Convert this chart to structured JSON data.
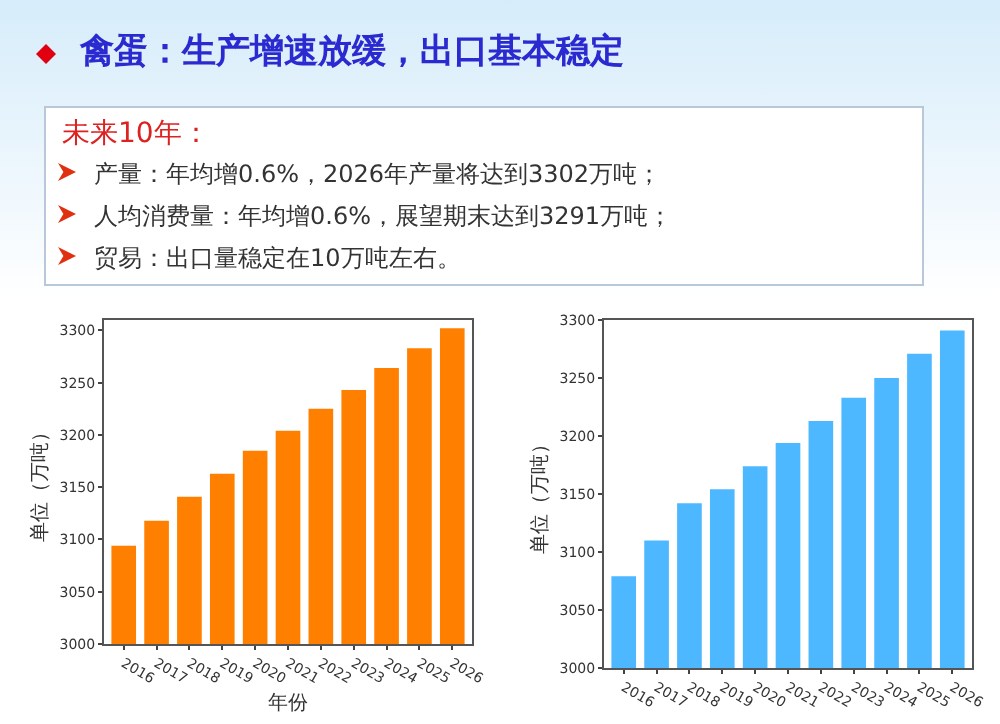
{
  "chart_data": [
    {
      "type": "other",
      "title": "禽蛋：生产增速放缓，出口基本稳定",
      "annotations": [
        "未来10年：",
        "产量：年均增0.6%，2026年产量将达到3302万吨；",
        "人均消费量：年均增0.6%，展望期末达到3291万吨；",
        "贸易：出口量稳定在10万吨左右。"
      ]
    },
    {
      "type": "bar",
      "xlabel": "年份",
      "ylabel": "单位（万吨）",
      "categories": [
        "2016",
        "2017",
        "2018",
        "2019",
        "2020",
        "2021",
        "2022",
        "2023",
        "2024",
        "2025",
        "2026"
      ],
      "values": [
        3094,
        3118,
        3141,
        3163,
        3185,
        3204,
        3225,
        3243,
        3264,
        3283,
        3302
      ],
      "color": "#ff8000",
      "ylim": [
        3000,
        3310
      ],
      "yticks": [
        3000,
        3050,
        3100,
        3150,
        3200,
        3250,
        3300
      ],
      "grid": false
    },
    {
      "type": "bar",
      "ylabel": "单位（万吨）",
      "categories": [
        "2016",
        "2017",
        "2018",
        "2019",
        "2020",
        "2021",
        "2022",
        "2023",
        "2024",
        "2025",
        "2026"
      ],
      "values": [
        3079,
        3110,
        3142,
        3154,
        3174,
        3194,
        3213,
        3233,
        3250,
        3271,
        3291
      ],
      "color": "#4db8ff",
      "ylim": [
        3000,
        3300
      ],
      "yticks": [
        3000,
        3050,
        3100,
        3150,
        3200,
        3250,
        3300
      ],
      "grid": false
    }
  ]
}
